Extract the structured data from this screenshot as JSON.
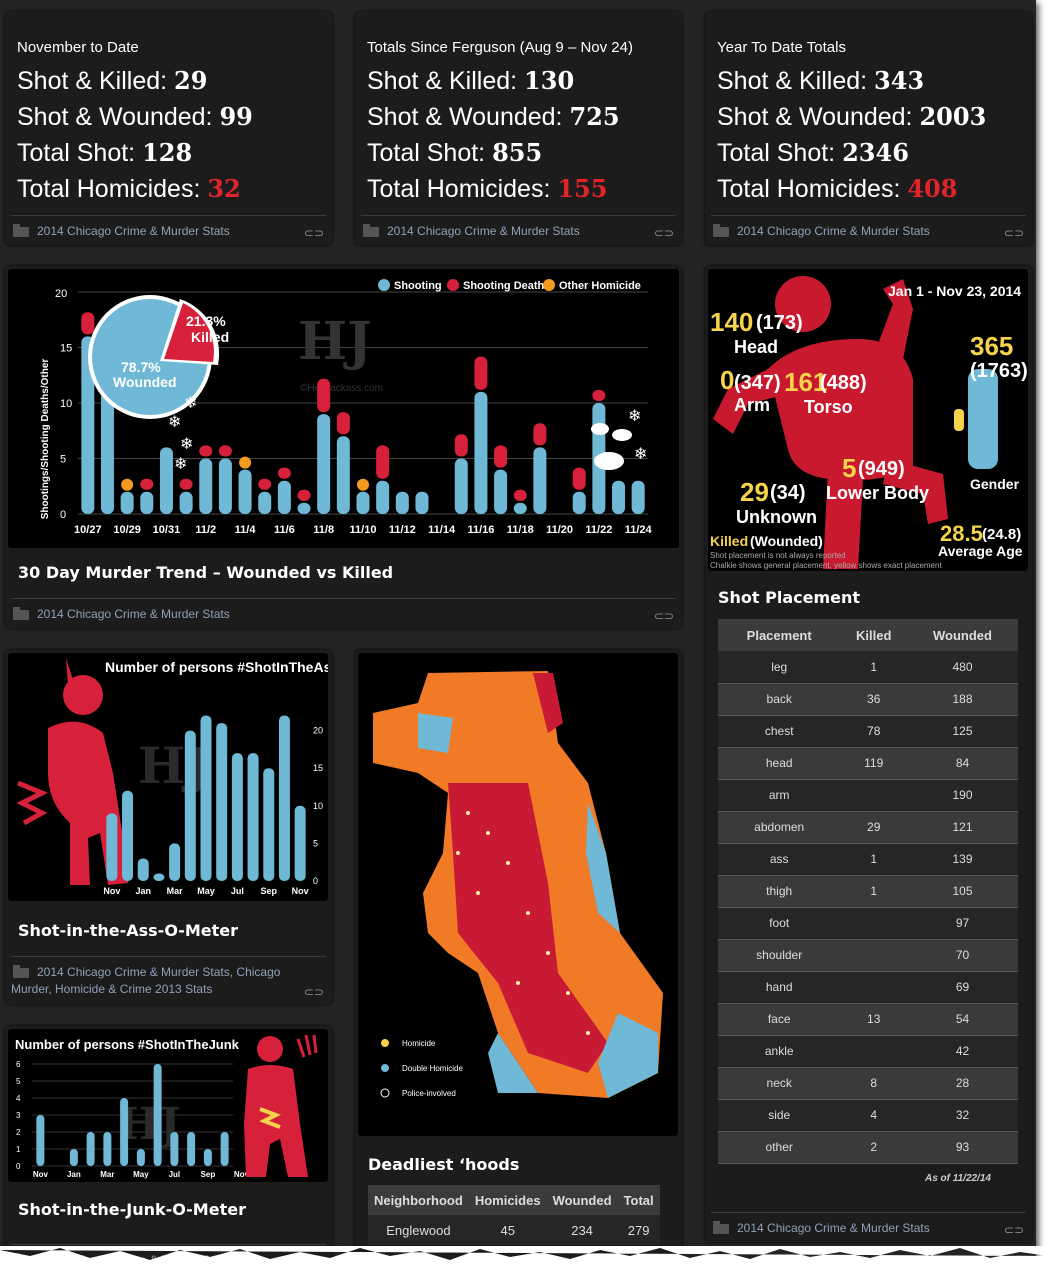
{
  "stat_cards": [
    {
      "heading": "November to Date",
      "rows": [
        {
          "label": "Shot & Killed:",
          "value": "29"
        },
        {
          "label": "Shot & Wounded:",
          "value": "99"
        },
        {
          "label": "Total Shot:",
          "value": "128"
        },
        {
          "label": "Total Homicides:",
          "value": "32",
          "red": true
        }
      ],
      "category": "2014 Chicago Crime & Murder Stats"
    },
    {
      "heading": "Totals Since Ferguson (Aug 9 – Nov 24)",
      "rows": [
        {
          "label": "Shot & Killed:",
          "value": "130"
        },
        {
          "label": "Shot & Wounded:",
          "value": "725"
        },
        {
          "label": "Total Shot:",
          "value": "855"
        },
        {
          "label": "Total Homicides:",
          "value": "155",
          "red": true
        }
      ],
      "category": "2014 Chicago Crime & Murder Stats"
    },
    {
      "heading": "Year To Date Totals",
      "rows": [
        {
          "label": "Shot & Killed:",
          "value": "343"
        },
        {
          "label": "Shot & Wounded:",
          "value": "2003"
        },
        {
          "label": "Total Shot:",
          "value": "2346"
        },
        {
          "label": "Total Homicides:",
          "value": "408",
          "red": true
        }
      ],
      "category": "2014 Chicago Crime & Murder Stats"
    }
  ],
  "trend": {
    "title": "30 Day Murder Trend – Wounded vs Killed",
    "category": "2014 Chicago Crime & Murder Stats",
    "pie_killed": "21.3%",
    "pie_killed_label": "Killed",
    "pie_wounded": "78.7%",
    "pie_wounded_label": "Wounded",
    "watermark": "HJ",
    "watermark_sub": "©HeyJackass.com"
  },
  "ass": {
    "title": "Shot-in-the-Ass-O-Meter",
    "category1": "2014 Chicago Crime & Murder Stats, Chicago",
    "category2": "Murder, Homicide & Crime 2013 Stats"
  },
  "junk": {
    "title": "Shot-in-the-Junk-O-Meter",
    "category": "2014 Chicago Crime & Murder Stats"
  },
  "map": {
    "legend": [
      "Homicide",
      "Double Homicide",
      "Police-involved"
    ]
  },
  "hoods": {
    "title": "Deadliest ‘hoods",
    "headers": [
      "Neighborhood",
      "Homicides",
      "Wounded",
      "Total"
    ],
    "rows": [
      [
        "Englewood",
        "45",
        "234",
        "279"
      ]
    ]
  },
  "placement_chart": {
    "date": "Jan 1 - Nov 23, 2014",
    "head_k": "140",
    "head_w": "(173)",
    "head_label": "Head",
    "arm_k": "0",
    "arm_w": "(347)",
    "arm_label": "Arm",
    "torso_k": "161",
    "torso_w": "(488)",
    "torso_label": "Torso",
    "lower_k": "5",
    "lower_w": "(949)",
    "lower_label": "Lower Body",
    "unk_k": "29",
    "unk_w": "(34)",
    "unk_label": "Unknown",
    "gender_k": "365",
    "gender_w": "(1763)",
    "gender_label": "Gender",
    "age_k": "28.5",
    "age_w": "(24.8)",
    "age_label": "Average Age",
    "legend1": "Killed",
    "legend1b": "(Wounded)",
    "note1": "Shot placement is not always reported",
    "note2": "Chalkie shows general placement, yellow shows exact placement"
  },
  "placement": {
    "title": "Shot Placement",
    "headers": [
      "Placement",
      "Killed",
      "Wounded"
    ],
    "rows": [
      [
        "leg",
        "1",
        "480"
      ],
      [
        "back",
        "36",
        "188"
      ],
      [
        "chest",
        "78",
        "125"
      ],
      [
        "head",
        "119",
        "84"
      ],
      [
        "arm",
        "",
        "190"
      ],
      [
        "abdomen",
        "29",
        "121"
      ],
      [
        "ass",
        "1",
        "139"
      ],
      [
        "thigh",
        "1",
        "105"
      ],
      [
        "foot",
        "",
        "97"
      ],
      [
        "shoulder",
        "",
        "70"
      ],
      [
        "hand",
        "",
        "69"
      ],
      [
        "face",
        "13",
        "54"
      ],
      [
        "ankle",
        "",
        "42"
      ],
      [
        "neck",
        "8",
        "28"
      ],
      [
        "side",
        "4",
        "32"
      ],
      [
        "other",
        "2",
        "93"
      ]
    ],
    "as_of": "As of 11/22/14",
    "category": "2014 Chicago Crime & Murder Stats"
  },
  "colors": {
    "shooting": "#6fb8d6",
    "death": "#d7203a",
    "other": "#f39a1f"
  },
  "chart_data": [
    {
      "type": "bar",
      "title": "30 Day Murder Trend",
      "ylabel": "Shootings/Shooting Deaths/Other",
      "ylim": [
        0,
        20
      ],
      "yticks": [
        0,
        5,
        10,
        15,
        20
      ],
      "legend": [
        "Shooting",
        "Shooting Death",
        "Other Homicide"
      ],
      "categories": [
        "10/27",
        "10/28",
        "10/29",
        "10/30",
        "10/31",
        "11/1",
        "11/2",
        "11/3",
        "11/4",
        "11/5",
        "11/6",
        "11/7",
        "11/8",
        "11/9",
        "11/10",
        "11/11",
        "11/12",
        "11/13",
        "11/14",
        "11/15",
        "11/16",
        "11/17",
        "11/18",
        "11/19",
        "11/20",
        "11/21",
        "11/22",
        "11/23",
        "11/24"
      ],
      "xticks": [
        "10/27",
        "10/29",
        "10/31",
        "11/2",
        "11/4",
        "11/6",
        "11/8",
        "11/10",
        "11/12",
        "11/14",
        "11/16",
        "11/18",
        "11/20",
        "11/22",
        "11/24"
      ],
      "series": [
        {
          "name": "Shooting",
          "values": [
            16,
            11,
            2,
            2,
            6,
            2,
            5,
            5,
            4,
            2,
            3,
            1,
            9,
            7,
            2,
            3,
            2,
            2,
            0,
            5,
            11,
            4,
            1,
            6,
            0,
            2,
            10,
            3,
            3
          ]
        },
        {
          "name": "Shooting Death",
          "values": [
            2,
            0,
            0,
            1,
            0,
            1,
            1,
            1,
            0,
            1,
            1,
            1,
            3,
            2,
            0,
            3,
            0,
            0,
            0,
            2,
            3,
            2,
            1,
            2,
            0,
            2,
            1,
            0,
            0
          ]
        },
        {
          "name": "Other Homicide",
          "values": [
            0,
            0,
            1,
            0,
            0,
            0,
            0,
            0,
            1,
            0,
            0,
            0,
            0,
            0,
            1,
            0,
            0,
            0,
            0,
            0,
            0,
            0,
            0,
            0,
            0,
            0,
            0,
            0,
            0
          ]
        }
      ]
    },
    {
      "type": "bar",
      "title": "Number of persons #ShotInTheAss",
      "ylim": [
        0,
        25
      ],
      "yticks": [
        0,
        5,
        10,
        15,
        20
      ],
      "xticks": [
        "Nov",
        "Jan",
        "Mar",
        "May",
        "Jul",
        "Sep",
        "Nov"
      ],
      "values": [
        9,
        12,
        3,
        1,
        5,
        20,
        22,
        21,
        17,
        17,
        15,
        22,
        10
      ]
    },
    {
      "type": "bar",
      "title": "Number of persons #ShotInTheJunk",
      "ylim": [
        0,
        6
      ],
      "yticks": [
        0,
        1,
        2,
        3,
        4,
        5,
        6
      ],
      "xticks": [
        "Nov",
        "Jan",
        "Mar",
        "May",
        "Jul",
        "Sep",
        "Nov"
      ],
      "values": [
        3,
        0,
        1,
        2,
        2,
        4,
        1,
        6,
        2,
        2,
        1,
        2
      ]
    }
  ]
}
